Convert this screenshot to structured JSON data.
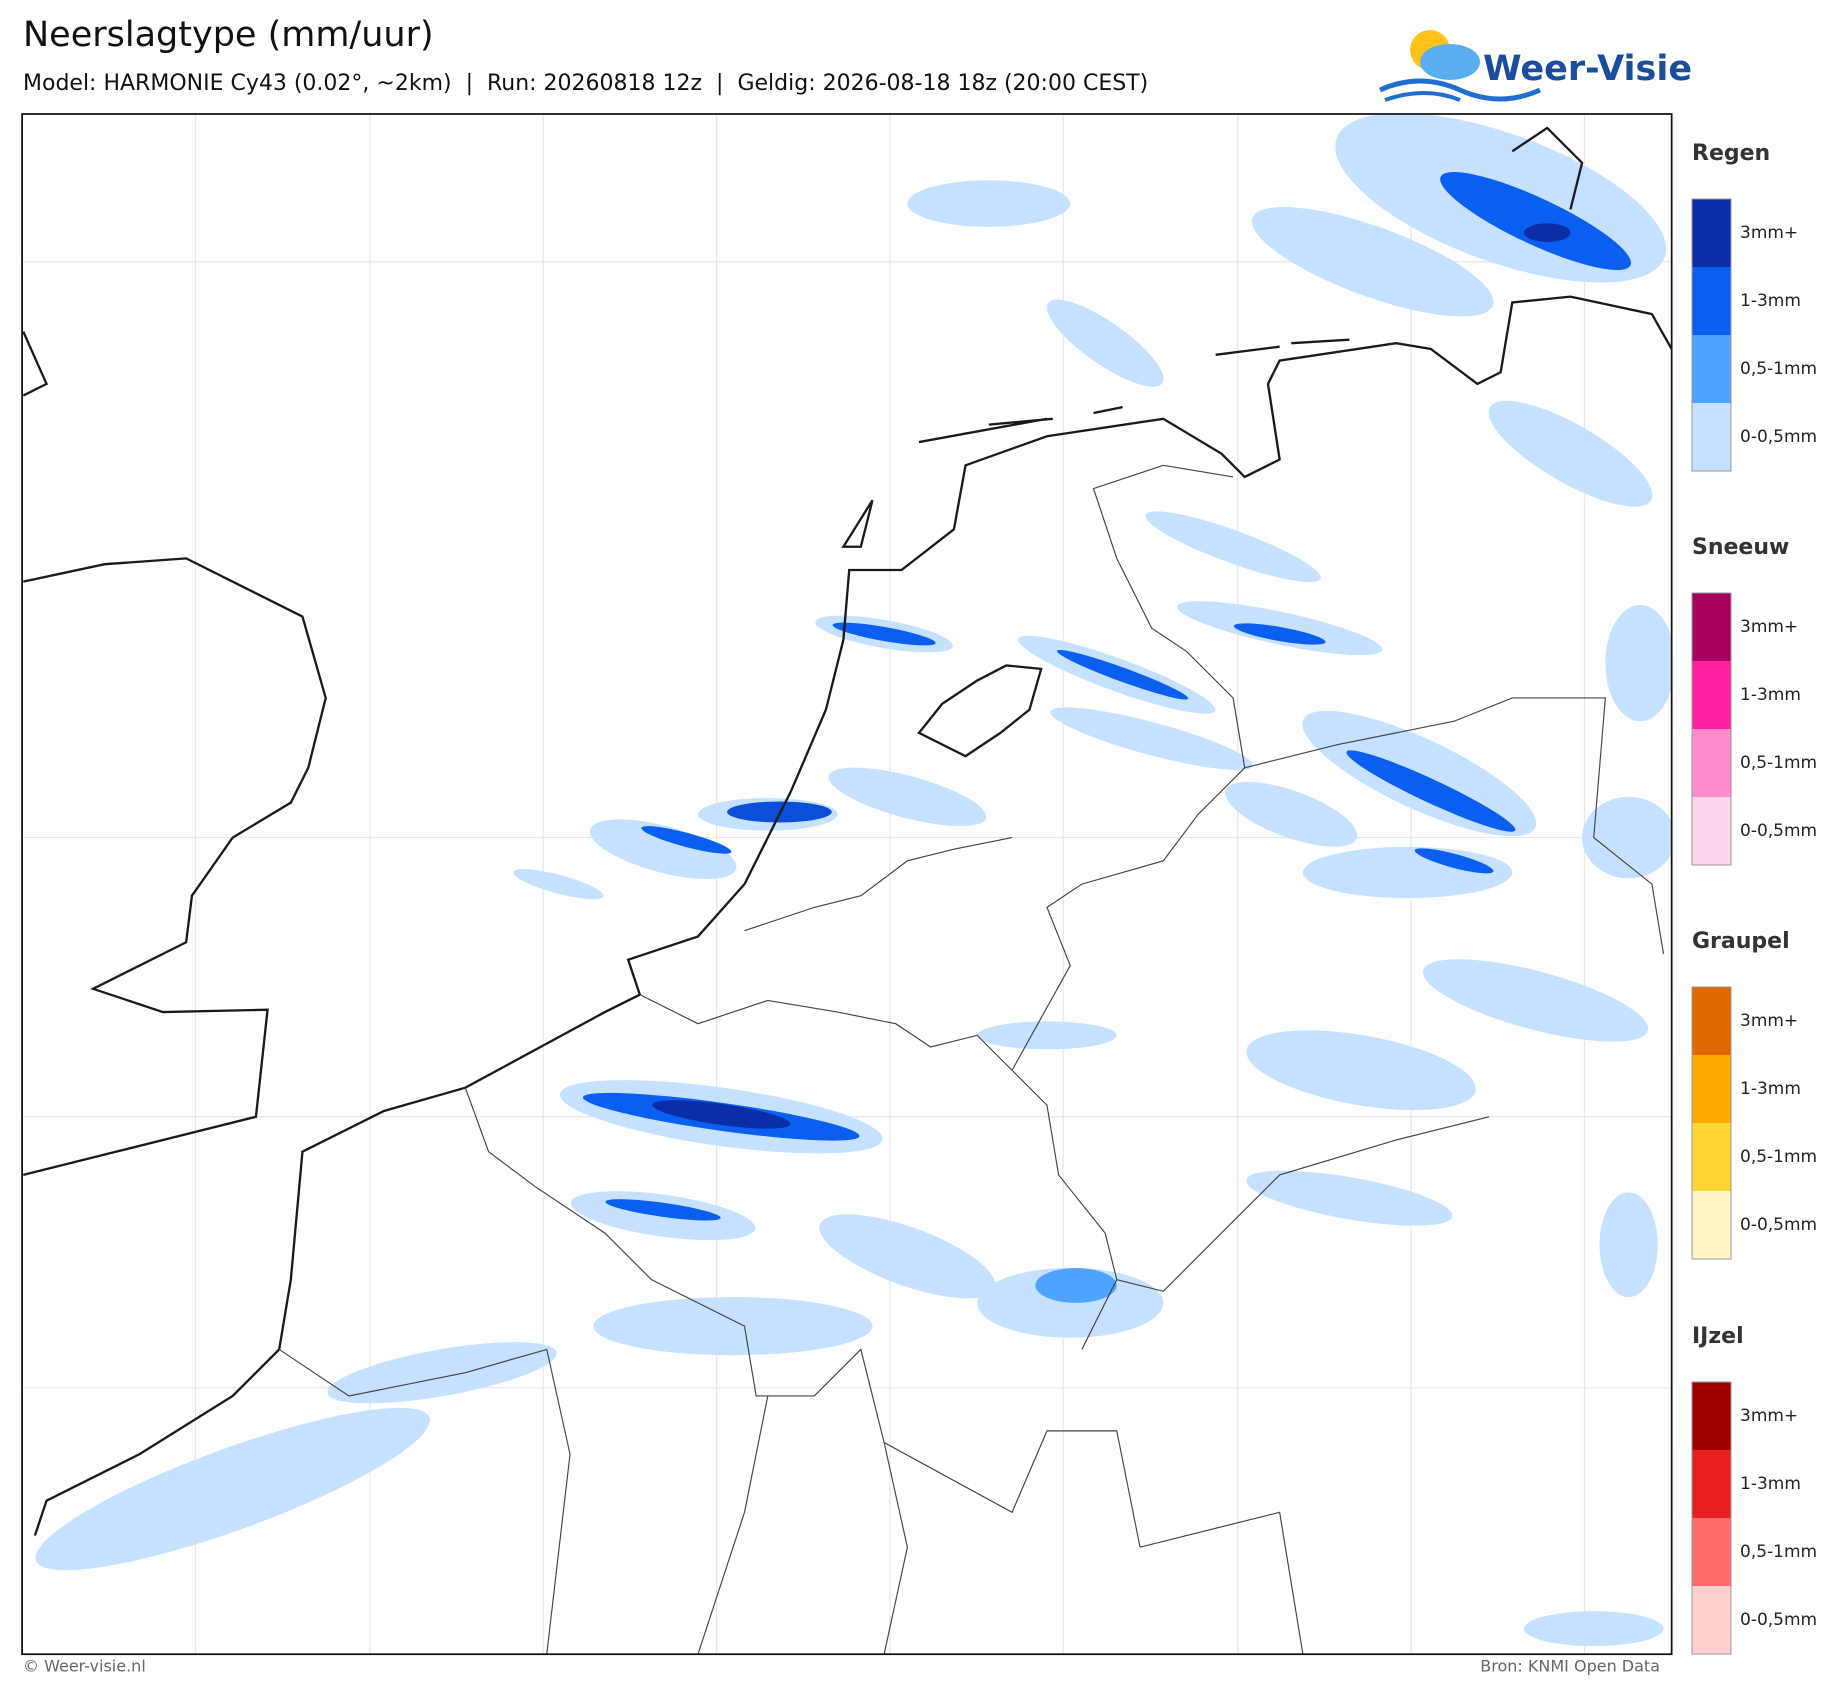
{
  "header": {
    "title": "Neerslagtype (mm/uur)",
    "subtitle": "Model: HARMONIE Cy43 (0.02°, ~2km)  |  Run: 20260818 12z  |  Geldig: 2026-08-18 18z (20:00 CEST)"
  },
  "logo": {
    "text": "Weer-Visie"
  },
  "legend": [
    {
      "title": "Regen",
      "bins": [
        {
          "label": "3mm+",
          "color": "#0a2ea8"
        },
        {
          "label": "1-3mm",
          "color": "#0a5ff0"
        },
        {
          "label": "0,5-1mm",
          "color": "#4da3ff"
        },
        {
          "label": "0-0,5mm",
          "color": "#c6e0ff"
        }
      ]
    },
    {
      "title": "Sneeuw",
      "bins": [
        {
          "label": "3mm+",
          "color": "#a8005f"
        },
        {
          "label": "1-3mm",
          "color": "#ff1fa0"
        },
        {
          "label": "0,5-1mm",
          "color": "#ff8ccc"
        },
        {
          "label": "0-0,5mm",
          "color": "#ffd5ec"
        }
      ]
    },
    {
      "title": "Graupel",
      "bins": [
        {
          "label": "3mm+",
          "color": "#e06a00"
        },
        {
          "label": "1-3mm",
          "color": "#ffa800"
        },
        {
          "label": "0,5-1mm",
          "color": "#ffd535"
        },
        {
          "label": "0-0,5mm",
          "color": "#fff3c8"
        }
      ]
    },
    {
      "title": "IJzel",
      "bins": [
        {
          "label": "3mm+",
          "color": "#a00000"
        },
        {
          "label": "1-3mm",
          "color": "#e82020"
        },
        {
          "label": "0,5-1mm",
          "color": "#ff6a6a"
        },
        {
          "label": "0-0,5mm",
          "color": "#ffd0d0"
        }
      ]
    }
  ],
  "footer": {
    "left": "© Weer-visie.nl",
    "right": "Bron: KNMI Open Data"
  }
}
